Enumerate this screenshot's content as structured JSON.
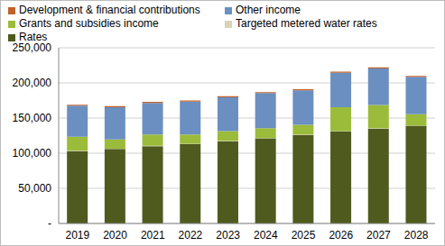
{
  "chart_data": {
    "type": "bar",
    "stacked": true,
    "grid": true,
    "legend": "top",
    "categories": [
      "2019",
      "2020",
      "2021",
      "2022",
      "2023",
      "2024",
      "2025",
      "2026",
      "2027",
      "2028"
    ],
    "series": [
      {
        "name": "Rates",
        "color": "#4f5a1e",
        "values": [
          103000,
          106000,
          110000,
          113000,
          117000,
          121000,
          126000,
          131000,
          135000,
          139000
        ]
      },
      {
        "name": "Targeted metered water rates",
        "color": "#d9d3b8",
        "values": [
          500,
          500,
          500,
          500,
          500,
          500,
          500,
          500,
          500,
          500
        ]
      },
      {
        "name": "Grants and subsidies income",
        "color": "#9bbb3a",
        "values": [
          20000,
          13000,
          16000,
          13000,
          14000,
          14000,
          14000,
          34000,
          33000,
          16000
        ]
      },
      {
        "name": "Other income",
        "color": "#6b8fc0",
        "values": [
          44000,
          46000,
          45000,
          47000,
          48000,
          50000,
          49000,
          49000,
          52000,
          53000
        ]
      },
      {
        "name": "Development & financial contributions",
        "color": "#c0612b",
        "values": [
          1500,
          1500,
          1500,
          1500,
          1500,
          1500,
          1500,
          1500,
          1500,
          1500
        ]
      }
    ],
    "ylim": [
      0,
      250000
    ],
    "yticks": [
      {
        "value": 0,
        "label": "-"
      },
      {
        "value": 50000,
        "label": "50,000"
      },
      {
        "value": 100000,
        "label": "100,000"
      },
      {
        "value": 150000,
        "label": "150,000"
      },
      {
        "value": 200000,
        "label": "200,000"
      },
      {
        "value": 250000,
        "label": "250,000"
      }
    ]
  }
}
